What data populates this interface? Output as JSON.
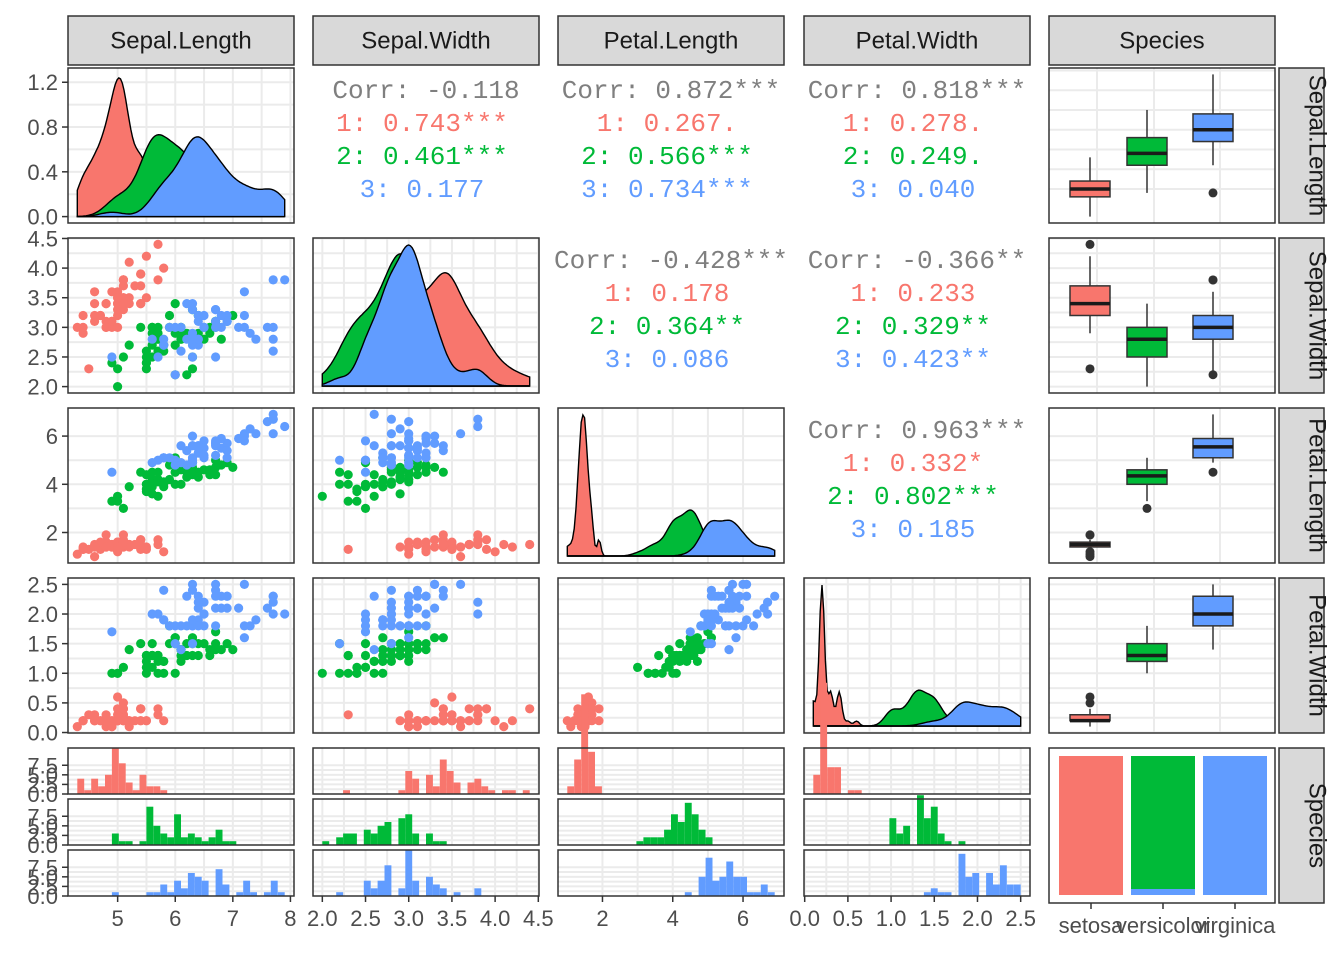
{
  "chart_data": {
    "type": "scatter",
    "variables": [
      "Sepal.Length",
      "Sepal.Width",
      "Petal.Length",
      "Petal.Width",
      "Species"
    ],
    "species_levels": [
      "setosa",
      "versicolor",
      "virginica"
    ],
    "species_colors": {
      "setosa": "#F8766D",
      "versicolor": "#00BA38",
      "virginica": "#619CFF"
    },
    "axes": {
      "Sepal.Length": {
        "range": [
          4.3,
          7.9
        ],
        "ticks": [
          {
            "value": 5,
            "label": "5"
          },
          {
            "value": 6,
            "label": "6"
          },
          {
            "value": 7,
            "label": "7"
          },
          {
            "value": 8,
            "label": "8"
          }
        ]
      },
      "Sepal.Width": {
        "range": [
          2.0,
          4.4
        ],
        "ticks": [
          {
            "value": 2.0,
            "label": "2.0"
          },
          {
            "value": 2.5,
            "label": "2.5"
          },
          {
            "value": 3.0,
            "label": "3.0"
          },
          {
            "value": 3.5,
            "label": "3.5"
          },
          {
            "value": 4.0,
            "label": "4.0"
          },
          {
            "value": 4.5,
            "label": "4.5"
          }
        ]
      },
      "Petal.Length": {
        "range": [
          1.0,
          6.9
        ],
        "ticks": [
          {
            "value": 2,
            "label": "2"
          },
          {
            "value": 4,
            "label": "4"
          },
          {
            "value": 6,
            "label": "6"
          }
        ]
      },
      "Petal.Width": {
        "range": [
          0.1,
          2.5
        ],
        "ticks": [
          {
            "value": 0.0,
            "label": "0.0"
          },
          {
            "value": 0.5,
            "label": "0.5"
          },
          {
            "value": 1.0,
            "label": "1.0"
          },
          {
            "value": 1.5,
            "label": "1.5"
          },
          {
            "value": 2.0,
            "label": "2.0"
          },
          {
            "value": 2.5,
            "label": "2.5"
          }
        ]
      },
      "Species": {
        "ticks": [
          {
            "value": 0,
            "label": "setosa"
          },
          {
            "value": 1,
            "label": "versicolor"
          },
          {
            "value": 2,
            "label": "virginica"
          }
        ]
      }
    },
    "density_y_axis": {
      "range": [
        0,
        1.27
      ],
      "ticks": [
        {
          "value": 0.0,
          "label": "0.0"
        },
        {
          "value": 0.4,
          "label": "0.4"
        },
        {
          "value": 0.8,
          "label": "0.8"
        },
        {
          "value": 1.2,
          "label": "1.2"
        }
      ]
    },
    "count_axis": {
      "range": [
        0,
        12
      ],
      "ticks": [
        {
          "value": 0.0,
          "label": "0.0"
        },
        {
          "value": 2.5,
          "label": "2.5"
        },
        {
          "value": 5.0,
          "label": "5.0"
        },
        {
          "value": 7.5,
          "label": "7.5"
        }
      ]
    },
    "correlations": [
      {
        "x": "Sepal.Length",
        "y": "Sepal.Width",
        "overall": "Corr: -0.118",
        "groups": [
          "1: 0.743***",
          "2: 0.461***",
          "3: 0.177"
        ]
      },
      {
        "x": "Sepal.Length",
        "y": "Petal.Length",
        "overall": "Corr: 0.872***",
        "groups": [
          "1: 0.267.",
          "2: 0.566***",
          "3: 0.734***"
        ]
      },
      {
        "x": "Sepal.Length",
        "y": "Petal.Width",
        "overall": "Corr: 0.818***",
        "groups": [
          "1: 0.278.",
          "2: 0.249.",
          "3: 0.040"
        ]
      },
      {
        "x": "Sepal.Width",
        "y": "Petal.Length",
        "overall": "Corr: -0.428***",
        "groups": [
          "1: 0.178",
          "2: 0.364**",
          "3: 0.086"
        ]
      },
      {
        "x": "Sepal.Width",
        "y": "Petal.Width",
        "overall": "Corr: -0.366**",
        "groups": [
          "1: 0.233",
          "2: 0.329**",
          "3: 0.423**"
        ]
      },
      {
        "x": "Petal.Length",
        "y": "Petal.Width",
        "overall": "Corr: 0.963***",
        "groups": [
          "1: 0.332*",
          "2: 0.802***",
          "3: 0.185"
        ]
      }
    ],
    "boxplots": {
      "Sepal.Length": [
        {
          "species": "setosa",
          "min": 4.3,
          "q1": 4.8,
          "median": 5.0,
          "q3": 5.2,
          "max": 5.8,
          "outliers": []
        },
        {
          "species": "versicolor",
          "min": 4.9,
          "q1": 5.6,
          "median": 5.9,
          "q3": 6.3,
          "max": 7.0,
          "outliers": []
        },
        {
          "species": "virginica",
          "min": 5.6,
          "q1": 6.2,
          "median": 6.5,
          "q3": 6.9,
          "max": 7.9,
          "outliers": [
            4.9
          ]
        }
      ],
      "Sepal.Width": [
        {
          "species": "setosa",
          "min": 2.9,
          "q1": 3.2,
          "median": 3.4,
          "q3": 3.7,
          "max": 4.2,
          "outliers": [
            4.4,
            2.3
          ]
        },
        {
          "species": "versicolor",
          "min": 2.0,
          "q1": 2.5,
          "median": 2.8,
          "q3": 3.0,
          "max": 3.4,
          "outliers": []
        },
        {
          "species": "virginica",
          "min": 2.2,
          "q1": 2.8,
          "median": 3.0,
          "q3": 3.2,
          "max": 3.6,
          "outliers": [
            3.8,
            3.8,
            2.2
          ]
        }
      ],
      "Petal.Length": [
        {
          "species": "setosa",
          "min": 1.3,
          "q1": 1.4,
          "median": 1.5,
          "q3": 1.6,
          "max": 1.7,
          "outliers": [
            1.9,
            1.9,
            1.0,
            1.1,
            1.2
          ]
        },
        {
          "species": "versicolor",
          "min": 3.3,
          "q1": 4.0,
          "median": 4.35,
          "q3": 4.6,
          "max": 5.1,
          "outliers": [
            3.0
          ]
        },
        {
          "species": "virginica",
          "min": 4.9,
          "q1": 5.1,
          "median": 5.55,
          "q3": 5.9,
          "max": 6.9,
          "outliers": [
            4.5
          ]
        }
      ],
      "Petal.Width": [
        {
          "species": "setosa",
          "min": 0.1,
          "q1": 0.2,
          "median": 0.2,
          "q3": 0.3,
          "max": 0.4,
          "outliers": [
            0.5,
            0.6
          ]
        },
        {
          "species": "versicolor",
          "min": 1.0,
          "q1": 1.2,
          "median": 1.3,
          "q3": 1.5,
          "max": 1.8,
          "outliers": []
        },
        {
          "species": "virginica",
          "min": 1.4,
          "q1": 1.8,
          "median": 2.0,
          "q3": 2.3,
          "max": 2.5,
          "outliers": []
        }
      ]
    },
    "species_bar": [
      {
        "species": "setosa",
        "count": 50
      },
      {
        "species": "versicolor",
        "count": 50
      },
      {
        "species": "virginica",
        "count": 50
      }
    ],
    "points": {
      "Sepal.Length": [
        5.1,
        4.9,
        4.7,
        4.6,
        5.0,
        5.4,
        4.6,
        5.0,
        4.4,
        4.9,
        5.4,
        4.8,
        4.8,
        4.3,
        5.8,
        5.7,
        5.4,
        5.1,
        5.7,
        5.1,
        5.4,
        5.1,
        4.6,
        5.1,
        4.8,
        5.0,
        5.0,
        5.2,
        5.2,
        4.7,
        4.8,
        5.4,
        5.2,
        5.5,
        4.9,
        5.0,
        5.5,
        4.9,
        4.4,
        5.1,
        5.0,
        4.5,
        4.4,
        5.0,
        5.1,
        4.8,
        5.1,
        4.6,
        5.3,
        5.0,
        7.0,
        6.4,
        6.9,
        5.5,
        6.5,
        5.7,
        6.3,
        4.9,
        6.6,
        5.2,
        5.0,
        5.9,
        6.0,
        6.1,
        5.6,
        6.7,
        5.6,
        5.8,
        6.2,
        5.6,
        5.9,
        6.1,
        6.3,
        6.1,
        6.4,
        6.6,
        6.8,
        6.7,
        6.0,
        5.7,
        5.5,
        5.5,
        5.8,
        6.0,
        5.4,
        6.0,
        6.7,
        6.3,
        5.6,
        5.5,
        5.5,
        6.1,
        5.8,
        5.0,
        5.6,
        5.7,
        5.7,
        6.2,
        5.1,
        5.7,
        6.3,
        5.8,
        7.1,
        6.3,
        6.5,
        7.6,
        4.9,
        7.3,
        6.7,
        7.2,
        6.5,
        6.4,
        6.8,
        5.7,
        5.8,
        6.4,
        6.5,
        7.7,
        7.7,
        6.0,
        6.9,
        5.6,
        7.7,
        6.3,
        6.7,
        7.2,
        6.2,
        6.1,
        6.4,
        7.2,
        7.4,
        7.9,
        6.4,
        6.3,
        6.1,
        7.7,
        6.3,
        6.4,
        6.0,
        6.9,
        6.7,
        6.9,
        5.8,
        6.8,
        6.7,
        6.7,
        6.3,
        6.5,
        6.2,
        5.9
      ],
      "Sepal.Width": [
        3.5,
        3.0,
        3.2,
        3.1,
        3.6,
        3.9,
        3.4,
        3.4,
        2.9,
        3.1,
        3.7,
        3.4,
        3.0,
        3.0,
        4.0,
        4.4,
        3.9,
        3.5,
        3.8,
        3.8,
        3.4,
        3.7,
        3.6,
        3.3,
        3.4,
        3.0,
        3.4,
        3.5,
        3.4,
        3.2,
        3.1,
        3.4,
        4.1,
        4.2,
        3.1,
        3.2,
        3.5,
        3.6,
        3.0,
        3.4,
        3.5,
        2.3,
        3.2,
        3.5,
        3.8,
        3.0,
        3.8,
        3.2,
        3.7,
        3.3,
        3.2,
        3.2,
        3.1,
        2.3,
        2.8,
        2.8,
        3.3,
        2.4,
        2.9,
        2.7,
        2.0,
        3.0,
        2.2,
        2.9,
        2.9,
        3.1,
        3.0,
        2.7,
        2.2,
        2.5,
        3.2,
        2.8,
        2.5,
        2.8,
        2.9,
        3.0,
        2.8,
        3.0,
        2.9,
        2.6,
        2.4,
        2.4,
        2.7,
        2.7,
        3.0,
        3.4,
        3.1,
        2.3,
        3.0,
        2.5,
        2.6,
        3.0,
        2.6,
        2.3,
        2.7,
        3.0,
        2.9,
        2.9,
        2.5,
        2.8,
        3.3,
        2.7,
        3.0,
        2.9,
        3.0,
        3.0,
        2.5,
        2.9,
        2.5,
        3.6,
        3.2,
        2.7,
        3.0,
        2.5,
        2.8,
        3.2,
        3.0,
        3.8,
        2.6,
        2.2,
        3.2,
        2.8,
        2.8,
        2.7,
        3.3,
        3.2,
        2.8,
        3.0,
        2.8,
        3.0,
        2.8,
        3.8,
        2.8,
        2.8,
        2.6,
        3.0,
        3.4,
        3.1,
        3.0,
        3.1,
        3.1,
        3.1,
        2.7,
        3.2,
        3.3,
        3.0,
        2.5,
        3.0,
        3.4,
        3.0
      ],
      "Petal.Length": [
        1.4,
        1.4,
        1.3,
        1.5,
        1.4,
        1.7,
        1.4,
        1.5,
        1.4,
        1.5,
        1.5,
        1.6,
        1.4,
        1.1,
        1.2,
        1.5,
        1.3,
        1.4,
        1.7,
        1.5,
        1.7,
        1.5,
        1.0,
        1.7,
        1.9,
        1.6,
        1.6,
        1.5,
        1.4,
        1.6,
        1.6,
        1.5,
        1.5,
        1.4,
        1.5,
        1.2,
        1.3,
        1.4,
        1.3,
        1.5,
        1.3,
        1.3,
        1.3,
        1.6,
        1.9,
        1.4,
        1.6,
        1.4,
        1.5,
        1.4,
        4.7,
        4.5,
        4.9,
        4.0,
        4.6,
        4.5,
        4.7,
        3.3,
        4.6,
        3.9,
        3.5,
        4.2,
        4.0,
        4.7,
        3.6,
        4.4,
        4.5,
        4.1,
        4.5,
        3.9,
        4.8,
        4.0,
        4.9,
        4.7,
        4.3,
        4.4,
        4.8,
        5.0,
        4.5,
        3.5,
        3.8,
        3.7,
        3.9,
        5.1,
        4.5,
        4.5,
        4.7,
        4.4,
        4.1,
        4.0,
        4.4,
        4.6,
        4.0,
        3.3,
        4.2,
        4.2,
        4.2,
        4.3,
        3.0,
        4.1,
        6.0,
        5.1,
        5.9,
        5.6,
        5.8,
        6.6,
        4.5,
        6.3,
        5.8,
        6.1,
        5.1,
        5.3,
        5.5,
        5.0,
        5.1,
        5.3,
        5.5,
        6.7,
        6.9,
        5.0,
        5.7,
        4.9,
        6.7,
        4.9,
        5.7,
        6.0,
        4.8,
        4.9,
        5.6,
        5.8,
        6.1,
        6.4,
        5.6,
        5.1,
        5.6,
        6.1,
        5.6,
        5.5,
        4.8,
        5.4,
        5.6,
        5.1,
        5.1,
        5.9,
        5.7,
        5.2,
        5.0,
        5.2,
        5.4,
        5.1
      ],
      "Petal.Width": [
        0.2,
        0.2,
        0.2,
        0.2,
        0.2,
        0.4,
        0.3,
        0.2,
        0.2,
        0.1,
        0.2,
        0.2,
        0.1,
        0.1,
        0.2,
        0.4,
        0.4,
        0.3,
        0.3,
        0.3,
        0.2,
        0.4,
        0.2,
        0.5,
        0.2,
        0.2,
        0.4,
        0.2,
        0.2,
        0.2,
        0.2,
        0.4,
        0.1,
        0.2,
        0.2,
        0.2,
        0.2,
        0.1,
        0.2,
        0.2,
        0.3,
        0.3,
        0.2,
        0.6,
        0.4,
        0.3,
        0.2,
        0.2,
        0.2,
        0.2,
        1.4,
        1.5,
        1.5,
        1.3,
        1.5,
        1.3,
        1.6,
        1.0,
        1.3,
        1.4,
        1.0,
        1.5,
        1.0,
        1.4,
        1.3,
        1.4,
        1.5,
        1.0,
        1.5,
        1.1,
        1.8,
        1.3,
        1.5,
        1.2,
        1.3,
        1.4,
        1.4,
        1.7,
        1.5,
        1.0,
        1.1,
        1.0,
        1.2,
        1.6,
        1.5,
        1.6,
        1.5,
        1.3,
        1.3,
        1.3,
        1.2,
        1.4,
        1.2,
        1.0,
        1.3,
        1.2,
        1.3,
        1.3,
        1.1,
        1.3,
        2.5,
        1.9,
        2.1,
        1.8,
        2.2,
        2.1,
        1.7,
        1.8,
        1.8,
        2.5,
        2.0,
        1.9,
        2.1,
        2.0,
        2.4,
        2.3,
        1.8,
        2.2,
        2.3,
        1.5,
        2.3,
        2.0,
        2.0,
        1.8,
        2.1,
        1.8,
        1.8,
        1.8,
        2.1,
        1.6,
        1.9,
        2.0,
        2.2,
        1.5,
        1.4,
        2.3,
        2.4,
        1.8,
        1.8,
        2.1,
        2.4,
        2.3,
        1.9,
        2.3,
        2.5,
        2.3,
        1.9,
        2.0,
        2.3,
        1.8
      ]
    }
  }
}
